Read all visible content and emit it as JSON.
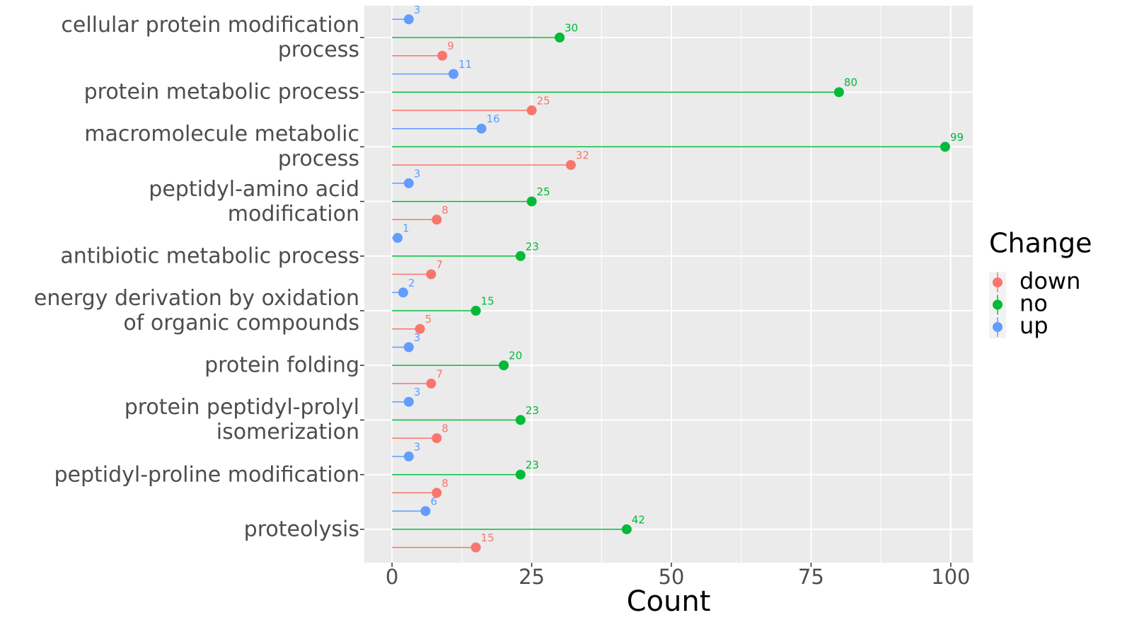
{
  "chart_data": {
    "type": "lollipop",
    "x_label": "Count",
    "categories": [
      "cellular protein modification\nprocess",
      "protein metabolic process",
      "macromolecule metabolic\nprocess",
      "peptidyl-amino acid\nmodification",
      "antibiotic metabolic process",
      "energy derivation by oxidation\nof organic compounds",
      "protein folding",
      "protein peptidyl-prolyl\nisomerization",
      "peptidyl-proline modification",
      "proteolysis"
    ],
    "series": [
      {
        "name": "down",
        "color": "#F8766D",
        "values": [
          9,
          25,
          32,
          8,
          7,
          5,
          7,
          8,
          8,
          15
        ]
      },
      {
        "name": "no",
        "color": "#00BA38",
        "values": [
          30,
          80,
          99,
          25,
          23,
          15,
          20,
          23,
          23,
          42
        ]
      },
      {
        "name": "up",
        "color": "#619CFF",
        "values": [
          3,
          11,
          16,
          3,
          1,
          2,
          3,
          3,
          3,
          6
        ]
      }
    ],
    "legend_title": "Change",
    "legend": "right",
    "xlim": [
      -4.95,
      103.95
    ],
    "xticks": [
      0,
      25,
      50,
      75,
      100
    ],
    "grid": true
  }
}
